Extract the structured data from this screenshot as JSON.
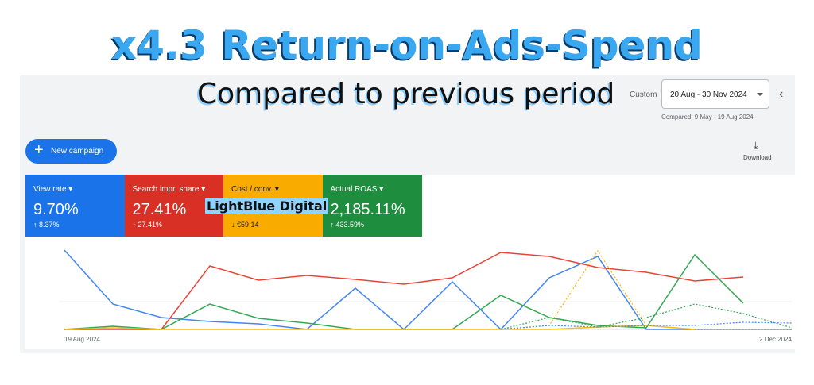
{
  "headline": "x4.3 Return-on-Ads-Spend",
  "subheadline": "Compared to previous period",
  "date_range": {
    "label": "Custom",
    "value": "20 Aug - 30 Nov 2024",
    "compared": "Compared: 9 May - 19 Aug 2024"
  },
  "new_campaign": "New campaign",
  "download": "Download",
  "watermark": "LightBlue Digital",
  "metrics": [
    {
      "name": "View rate",
      "value": "9.70%",
      "change": "↑ 8.37%",
      "color": "#1a73e8",
      "text": "#ffffff"
    },
    {
      "name": "Search impr. share",
      "value": "27.41%",
      "change": "↑ 27.41%",
      "color": "#d93025",
      "text": "#ffffff"
    },
    {
      "name": "Cost / conv.",
      "value": null,
      "change": "↓ €59.14",
      "color": "#f9ab00",
      "text": "#202124"
    },
    {
      "name": "Actual ROAS",
      "value": "2,185.11%",
      "change": "↑ 433.59%",
      "color": "#1e8e3e",
      "text": "#ffffff"
    }
  ],
  "chart_data": {
    "type": "line",
    "categories": [
      "19 Aug 2024",
      null,
      null,
      null,
      null,
      null,
      null,
      null,
      null,
      null,
      null,
      null,
      null,
      null,
      null,
      "2 Dec 2024"
    ],
    "ylim": [
      0,
      100
    ],
    "series": [
      {
        "color": "#4285f4",
        "dashed": false,
        "values": [
          100,
          32,
          15,
          10,
          7,
          0,
          52,
          0,
          60,
          0,
          65,
          92,
          0,
          0,
          0,
          0
        ]
      },
      {
        "color": "#ea4335",
        "dashed": false,
        "values": [
          0,
          0,
          0,
          80,
          62,
          68,
          63,
          57,
          65,
          97,
          92,
          78,
          72,
          61,
          66,
          null
        ]
      },
      {
        "color": "#34a853",
        "dashed": false,
        "values": [
          0,
          4,
          0,
          32,
          14,
          8,
          0,
          0,
          0,
          43,
          15,
          5,
          2,
          94,
          33,
          null
        ]
      },
      {
        "color": "#fbbc04",
        "dashed": false,
        "values": [
          0,
          2,
          0,
          0,
          0,
          0,
          0,
          0,
          0,
          0,
          0,
          3,
          5,
          0,
          null,
          null
        ]
      },
      {
        "color": "#fbbc04",
        "dashed": true,
        "values": [
          null,
          null,
          null,
          null,
          null,
          null,
          null,
          null,
          null,
          0,
          5,
          99,
          5,
          0,
          0,
          0
        ]
      },
      {
        "color": "#34a853",
        "dashed": true,
        "values": [
          null,
          null,
          null,
          null,
          null,
          null,
          null,
          null,
          null,
          0,
          15,
          3,
          15,
          32,
          20,
          2
        ]
      },
      {
        "color": "#4285f4",
        "dashed": true,
        "values": [
          null,
          null,
          null,
          null,
          null,
          null,
          null,
          null,
          null,
          0,
          5,
          3,
          5,
          5,
          9,
          8
        ]
      }
    ]
  }
}
